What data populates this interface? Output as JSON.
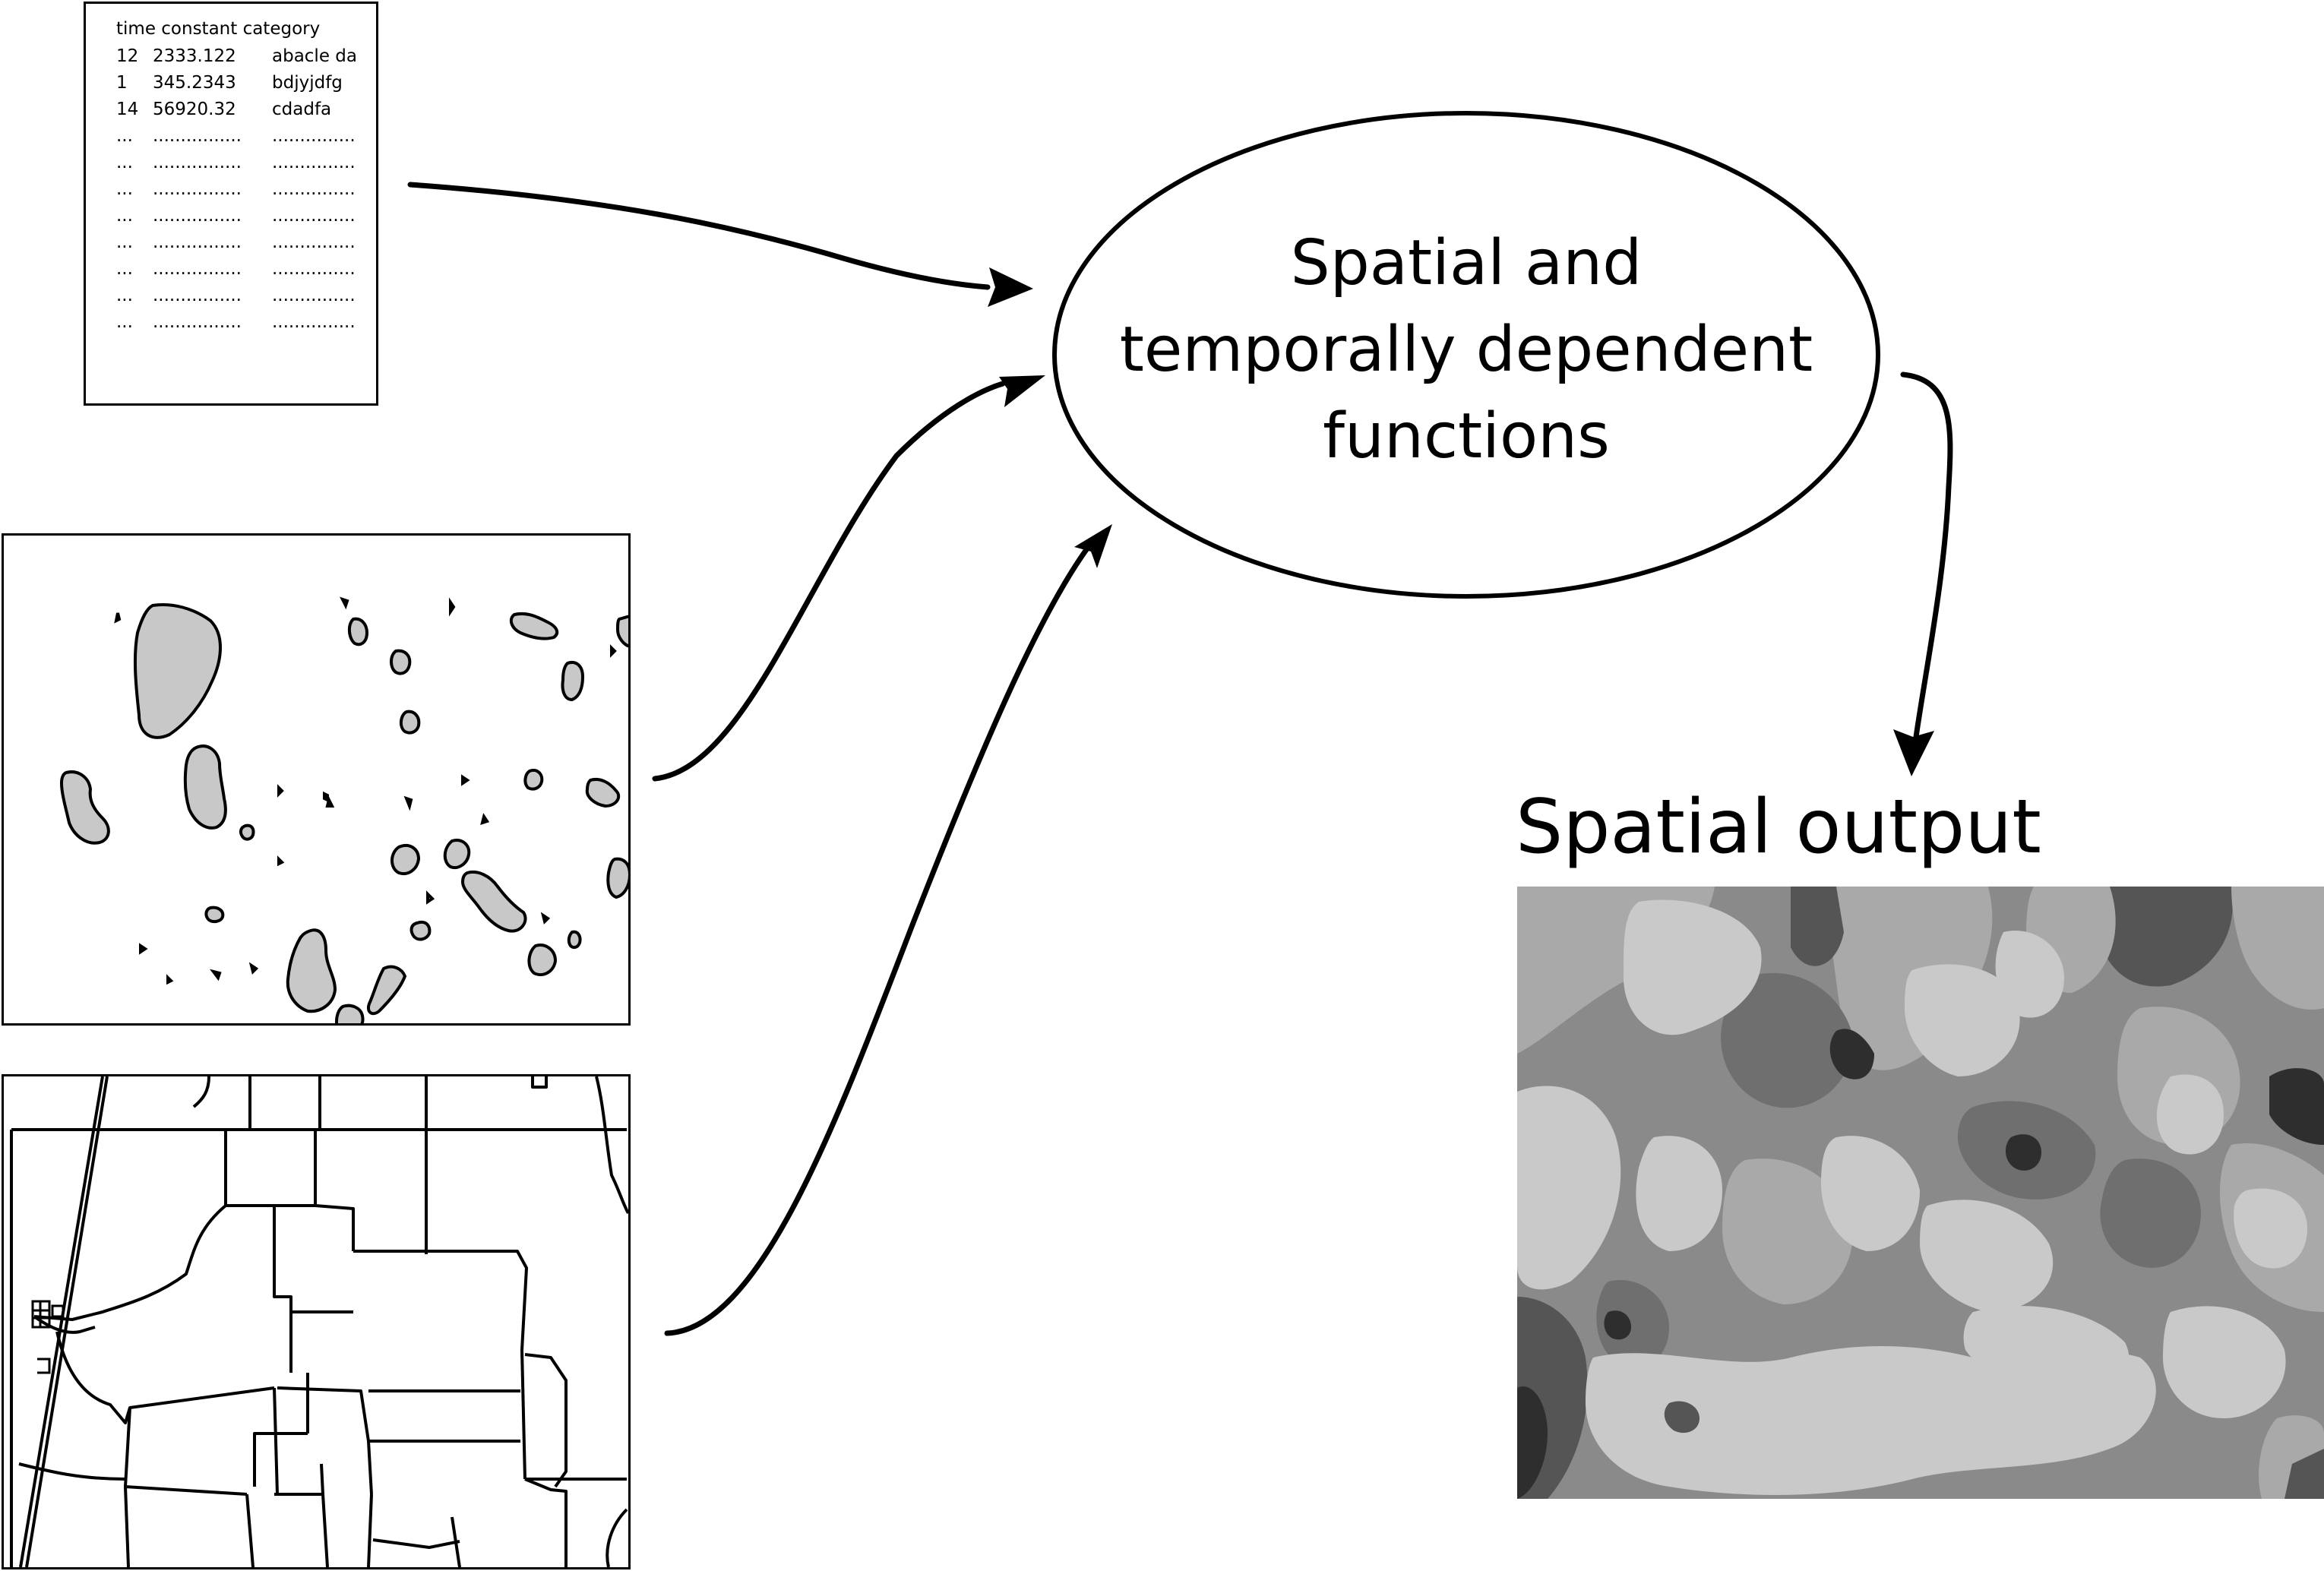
{
  "table": {
    "header": "time constant category",
    "rows": [
      {
        "time": "12",
        "constant": "2333.122",
        "category": "abacle da"
      },
      {
        "time": "1",
        "constant": "345.2343",
        "category": "bdjyjdfg"
      },
      {
        "time": "14",
        "constant": "56920.32",
        "category": "cdadfa"
      },
      {
        "time": "...",
        "constant": "................",
        "category": "..............."
      },
      {
        "time": "...",
        "constant": "................",
        "category": "..............."
      },
      {
        "time": "...",
        "constant": "................",
        "category": "..............."
      },
      {
        "time": "...",
        "constant": "................",
        "category": "..............."
      },
      {
        "time": "...",
        "constant": "................",
        "category": "..............."
      },
      {
        "time": "...",
        "constant": "................",
        "category": "..............."
      },
      {
        "time": "...",
        "constant": "................",
        "category": "..............."
      },
      {
        "time": "...",
        "constant": "................",
        "category": "..............."
      }
    ]
  },
  "process": {
    "lines": [
      "Spatial and",
      "temporally dependent",
      "functions"
    ]
  },
  "output": {
    "title": "Spatial output"
  },
  "colors": {
    "stroke": "#000000",
    "lake_fill": "#c8c8c8",
    "gray_levels": [
      "#2e2e2e",
      "#555555",
      "#6f6f6f",
      "#8a8a8a",
      "#a9a9a9",
      "#c9c9c9"
    ]
  }
}
